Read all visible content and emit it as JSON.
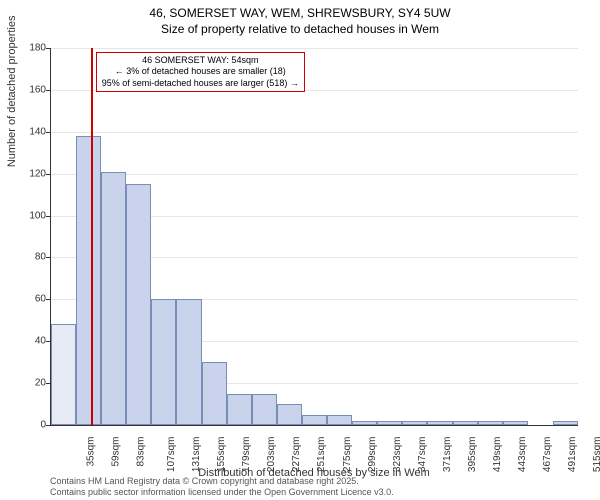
{
  "title_line1": "46, SOMERSET WAY, WEM, SHREWSBURY, SY4 5UW",
  "title_line2": "Size of property relative to detached houses in Wem",
  "chart": {
    "type": "histogram",
    "ylabel": "Number of detached properties",
    "xlabel": "Distribution of detached houses by size in Wem",
    "ylim": [
      0,
      180
    ],
    "ytick_step": 20,
    "grid_color": "#e6e6e6",
    "bar_fill": "#c9d4ec",
    "bar_fill_left": "#e6ebf5",
    "bar_border": "#7a8db8",
    "marker_color": "#d00000",
    "marker_x_value": 54,
    "x_start": 35,
    "x_bin": 12,
    "categories": [
      "35sqm",
      "59sqm",
      "83sqm",
      "107sqm",
      "131sqm",
      "155sqm",
      "179sqm",
      "203sqm",
      "227sqm",
      "251sqm",
      "275sqm",
      "299sqm",
      "323sqm",
      "347sqm",
      "371sqm",
      "395sqm",
      "419sqm",
      "443sqm",
      "467sqm",
      "491sqm",
      "515sqm"
    ],
    "values": [
      48,
      138,
      121,
      115,
      60,
      60,
      30,
      15,
      15,
      10,
      5,
      5,
      2,
      2,
      2,
      2,
      2,
      2,
      2,
      0,
      2
    ]
  },
  "annotation": {
    "line1": "46 SOMERSET WAY: 54sqm",
    "line2": "← 3% of detached houses are smaller (18)",
    "line3": "95% of semi-detached houses are larger (518) →"
  },
  "footer": {
    "line1": "Contains HM Land Registry data © Crown copyright and database right 2025.",
    "line2": "Contains public sector information licensed under the Open Government Licence v3.0."
  }
}
